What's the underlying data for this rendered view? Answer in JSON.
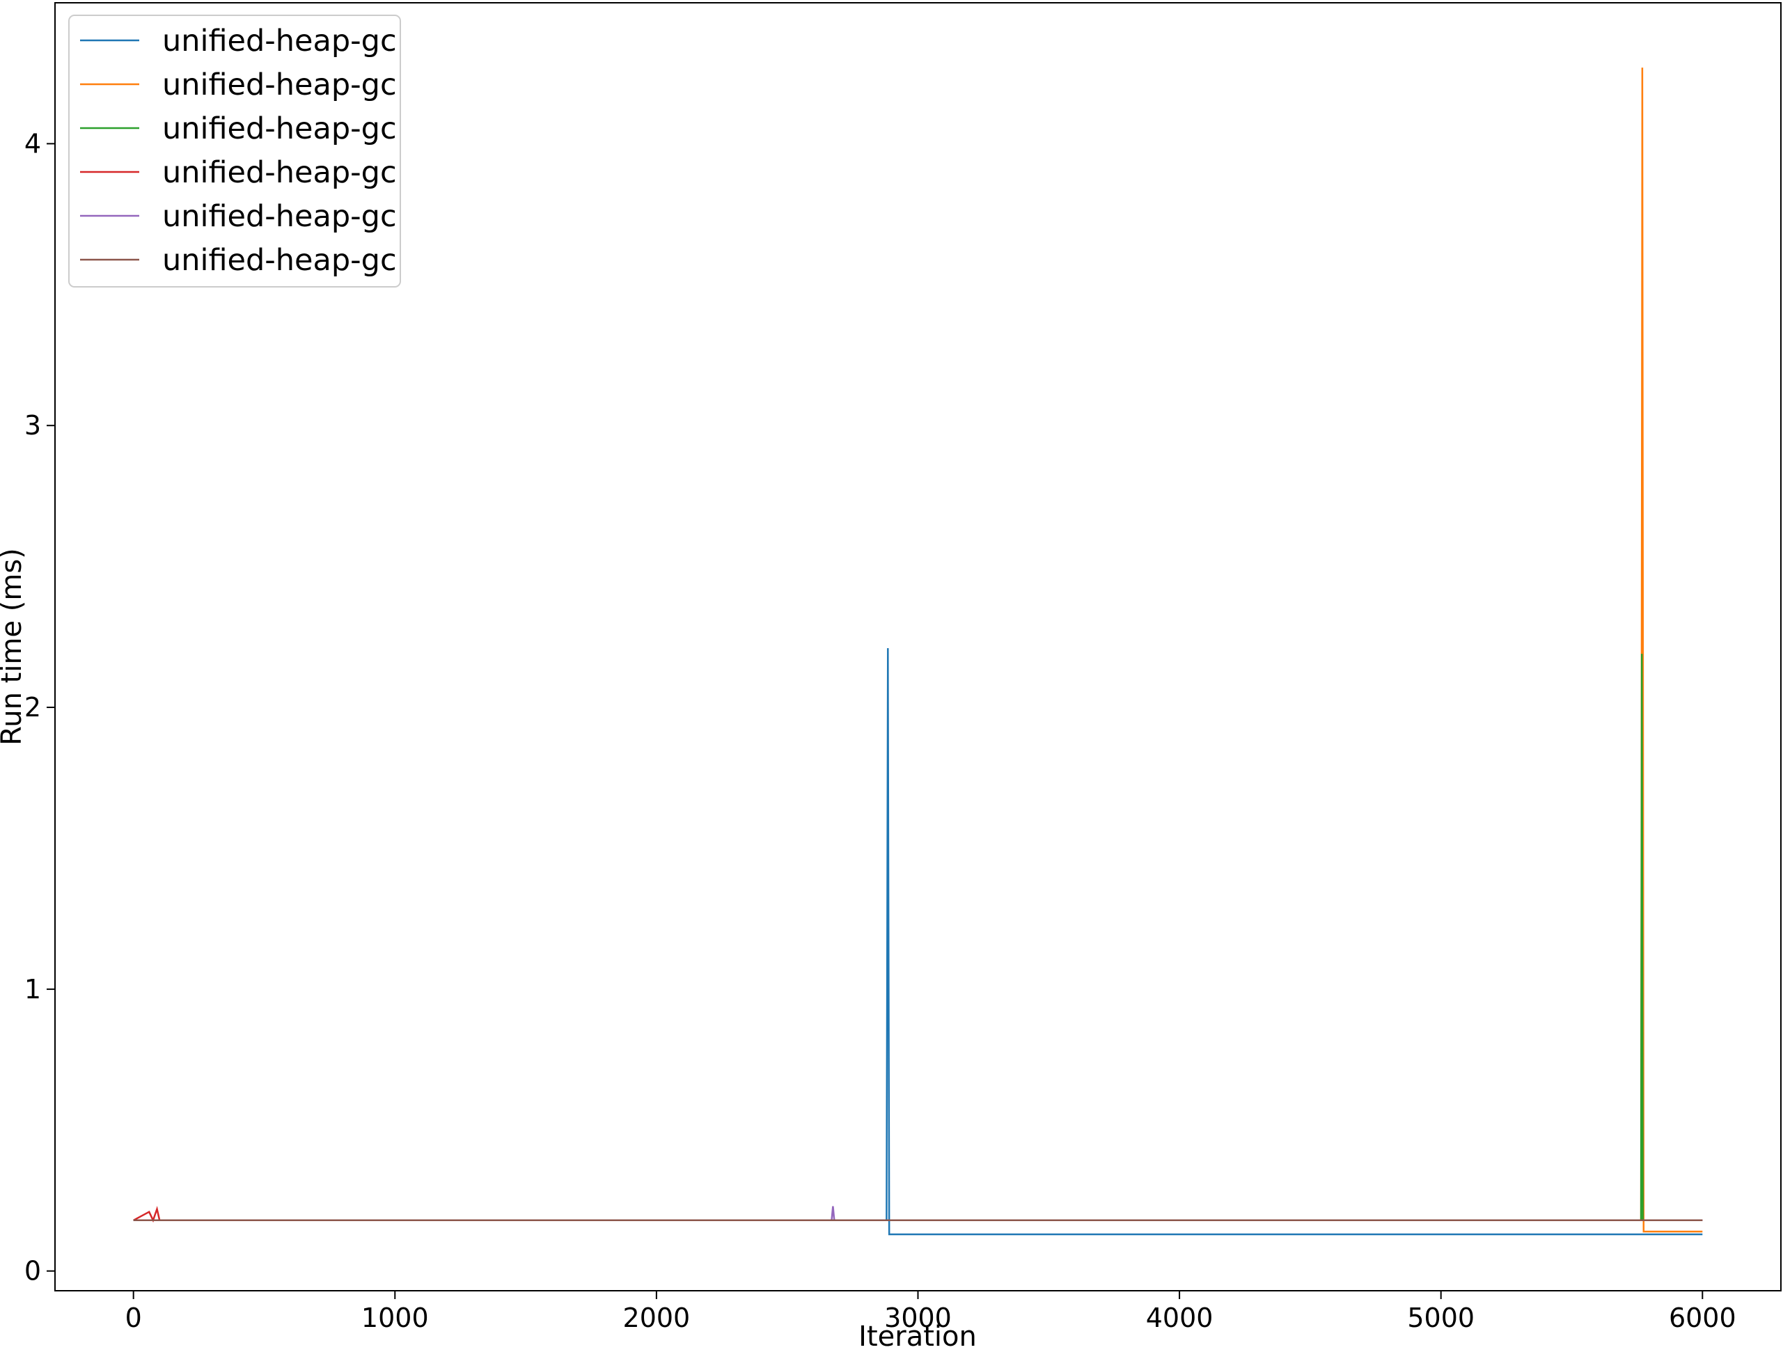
{
  "chart_data": {
    "type": "line",
    "title": "",
    "xlabel": "Iteration",
    "ylabel": "Run time (ms)",
    "xlim": [
      -300,
      6300
    ],
    "ylim": [
      -0.07,
      4.5
    ],
    "xticks": [
      0,
      1000,
      2000,
      3000,
      4000,
      5000,
      6000
    ],
    "yticks": [
      0,
      1,
      2,
      3,
      4
    ],
    "grid": false,
    "legend_position": "top-left",
    "series": [
      {
        "name": "unified-heap-gc",
        "color": "#1f77b4",
        "points": [
          [
            0,
            0.18
          ],
          [
            2880,
            0.18
          ],
          [
            2885,
            2.21
          ],
          [
            2890,
            0.13
          ],
          [
            5760,
            0.13
          ],
          [
            5765,
            0.13
          ],
          [
            6000,
            0.13
          ]
        ]
      },
      {
        "name": "unified-heap-gc",
        "color": "#ff7f0e",
        "points": [
          [
            0,
            0.18
          ],
          [
            5765,
            0.18
          ],
          [
            5770,
            4.27
          ],
          [
            5775,
            0.14
          ],
          [
            6000,
            0.14
          ]
        ]
      },
      {
        "name": "unified-heap-gc",
        "color": "#2ca02c",
        "points": [
          [
            0,
            0.18
          ],
          [
            5765,
            0.18
          ],
          [
            5768,
            2.19
          ],
          [
            5772,
            0.18
          ],
          [
            6000,
            0.18
          ]
        ]
      },
      {
        "name": "unified-heap-gc",
        "color": "#d62728",
        "points": [
          [
            0,
            0.18
          ],
          [
            60,
            0.21
          ],
          [
            75,
            0.18
          ],
          [
            90,
            0.22
          ],
          [
            100,
            0.18
          ],
          [
            6000,
            0.18
          ]
        ]
      },
      {
        "name": "unified-heap-gc",
        "color": "#9467bd",
        "points": [
          [
            0,
            0.18
          ],
          [
            2670,
            0.18
          ],
          [
            2675,
            0.23
          ],
          [
            2680,
            0.18
          ],
          [
            6000,
            0.18
          ]
        ]
      },
      {
        "name": "unified-heap-gc",
        "color": "#8c564b",
        "points": [
          [
            0,
            0.18
          ],
          [
            6000,
            0.18
          ]
        ]
      }
    ]
  }
}
